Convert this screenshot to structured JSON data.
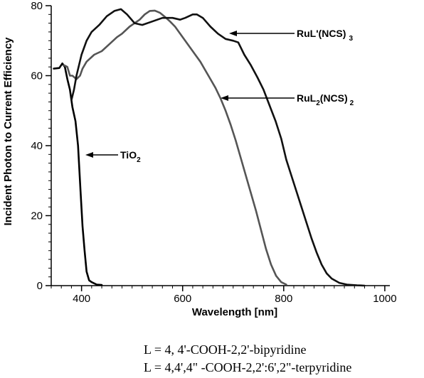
{
  "chart_data": {
    "type": "line",
    "xlabel": "Wavelength [nm]",
    "ylabel": "Incident Photon to Current Efficiency",
    "xlim": [
      340,
      1010
    ],
    "ylim": [
      0,
      80
    ],
    "x_ticks": [
      "400",
      "600",
      "800",
      "1000"
    ],
    "y_ticks": [
      "0",
      "20",
      "40",
      "60",
      "80"
    ],
    "grid": false,
    "legend": "none",
    "series": [
      {
        "name": "TiO2",
        "label_main": "TiO",
        "label_sub": "2",
        "color": "#000000",
        "points": [
          [
            345,
            62
          ],
          [
            356,
            62.2
          ],
          [
            362,
            63.5
          ],
          [
            367,
            62.5
          ],
          [
            372,
            59
          ],
          [
            377,
            56
          ],
          [
            382,
            51
          ],
          [
            388,
            47
          ],
          [
            393,
            40
          ],
          [
            398,
            27
          ],
          [
            402,
            17
          ],
          [
            406,
            10
          ],
          [
            410,
            4
          ],
          [
            415,
            1.5
          ],
          [
            420,
            1
          ],
          [
            430,
            0.3
          ],
          [
            440,
            0.2
          ]
        ]
      },
      {
        "name": "RuL2(NCS)2",
        "label_main": "RuL",
        "label_sub1": "2",
        "label_mid": "(NCS)",
        "label_sub2": "2",
        "color": "#555555",
        "points": [
          [
            365,
            63
          ],
          [
            372,
            62.5
          ],
          [
            377,
            60
          ],
          [
            382,
            60
          ],
          [
            390,
            59
          ],
          [
            397,
            60
          ],
          [
            402,
            62
          ],
          [
            410,
            64
          ],
          [
            425,
            66
          ],
          [
            440,
            67
          ],
          [
            455,
            69
          ],
          [
            470,
            71
          ],
          [
            480,
            72
          ],
          [
            495,
            74
          ],
          [
            505,
            75
          ],
          [
            515,
            76
          ],
          [
            525,
            77.5
          ],
          [
            535,
            78.5
          ],
          [
            545,
            78.6
          ],
          [
            555,
            78
          ],
          [
            565,
            76.8
          ],
          [
            575,
            75.5
          ],
          [
            585,
            74
          ],
          [
            595,
            72
          ],
          [
            605,
            70
          ],
          [
            615,
            68
          ],
          [
            625,
            66
          ],
          [
            635,
            64
          ],
          [
            645,
            61.5
          ],
          [
            655,
            59
          ],
          [
            665,
            56.5
          ],
          [
            675,
            53.5
          ],
          [
            685,
            50
          ],
          [
            695,
            46
          ],
          [
            705,
            41.5
          ],
          [
            715,
            36.5
          ],
          [
            725,
            31.5
          ],
          [
            735,
            26.5
          ],
          [
            745,
            21.5
          ],
          [
            755,
            16
          ],
          [
            765,
            10.5
          ],
          [
            775,
            6
          ],
          [
            785,
            2.8
          ],
          [
            795,
            1
          ],
          [
            805,
            0.3
          ]
        ]
      },
      {
        "name": "RuL'(NCS)3",
        "label_main": "RuL'(NCS)",
        "label_sub": "3",
        "color": "#111111",
        "points": [
          [
            380,
            53
          ],
          [
            385,
            56
          ],
          [
            390,
            60
          ],
          [
            400,
            66
          ],
          [
            410,
            70
          ],
          [
            420,
            72.5
          ],
          [
            435,
            74.5
          ],
          [
            450,
            77
          ],
          [
            465,
            78.5
          ],
          [
            478,
            79
          ],
          [
            490,
            77.5
          ],
          [
            505,
            75
          ],
          [
            520,
            74.5
          ],
          [
            540,
            75.5
          ],
          [
            560,
            76.5
          ],
          [
            580,
            76.5
          ],
          [
            595,
            76
          ],
          [
            605,
            76.5
          ],
          [
            620,
            77.5
          ],
          [
            628,
            77.5
          ],
          [
            640,
            76.5
          ],
          [
            655,
            74
          ],
          [
            670,
            72
          ],
          [
            685,
            70.5
          ],
          [
            700,
            70
          ],
          [
            710,
            69.5
          ],
          [
            722,
            66
          ],
          [
            735,
            63
          ],
          [
            748,
            59.5
          ],
          [
            760,
            56
          ],
          [
            772,
            51.5
          ],
          [
            784,
            47
          ],
          [
            795,
            42
          ],
          [
            805,
            36
          ],
          [
            815,
            31.5
          ],
          [
            825,
            27
          ],
          [
            835,
            22.5
          ],
          [
            845,
            18
          ],
          [
            855,
            13.5
          ],
          [
            865,
            9.5
          ],
          [
            875,
            6
          ],
          [
            885,
            3.5
          ],
          [
            895,
            2
          ],
          [
            910,
            0.8
          ],
          [
            925,
            0.3
          ],
          [
            945,
            0.1
          ],
          [
            960,
            0
          ]
        ]
      }
    ]
  },
  "captions": {
    "line1": "L = 4, 4'-COOH-2,2'-bipyridine",
    "line2": "L = 4,4',4\" -COOH-2,2':6',2\"-terpyridine"
  }
}
